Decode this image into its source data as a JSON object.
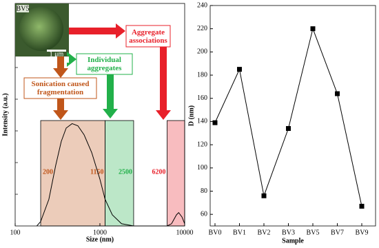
{
  "chart_data": [
    {
      "type": "line",
      "xscale": "log",
      "xlabel": "Size (nm)",
      "ylabel": "Intensity (a.u.)",
      "x": [
        180,
        200,
        250,
        300,
        350,
        400,
        470,
        550,
        650,
        800,
        1000,
        1150,
        1400,
        1800,
        2500,
        5000,
        6200,
        7000,
        8000,
        8500,
        9300,
        10000
      ],
      "values": [
        0,
        0.02,
        0.12,
        0.27,
        0.38,
        0.44,
        0.46,
        0.45,
        0.41,
        0.33,
        0.21,
        0.12,
        0.05,
        0.01,
        0,
        0,
        0,
        0.01,
        0.05,
        0.06,
        0.04,
        0.01
      ],
      "color": "#000000",
      "xlim": [
        100,
        10000
      ],
      "xticks": [
        100,
        1000,
        10000
      ],
      "ylim": [
        0,
        1
      ],
      "regions": [
        {
          "from": 200,
          "to": 1150,
          "color": "#c0561a"
        },
        {
          "from": 1150,
          "to": 2500,
          "color": "#22b04a"
        },
        {
          "from": 6200,
          "to": 10000,
          "color": "#e8202a"
        }
      ],
      "inset_label": "BV5",
      "scale_bar": "1 μm",
      "annotations": [
        "Aggregate associations",
        "Individual aggregates",
        "Sonication caused fragmentation"
      ]
    },
    {
      "type": "line",
      "xlabel": "Sample",
      "ylabel": "D (nm)",
      "categories": [
        "BV0",
        "BV1",
        "BV2",
        "BV3",
        "BV5",
        "BV7",
        "BV9"
      ],
      "values": [
        139,
        185,
        76,
        134,
        220,
        164,
        67
      ],
      "color": "#000000",
      "marker": "square",
      "ylim": [
        50,
        240
      ],
      "yticks": [
        60,
        80,
        100,
        120,
        140,
        160,
        180,
        200,
        220,
        240
      ]
    }
  ]
}
